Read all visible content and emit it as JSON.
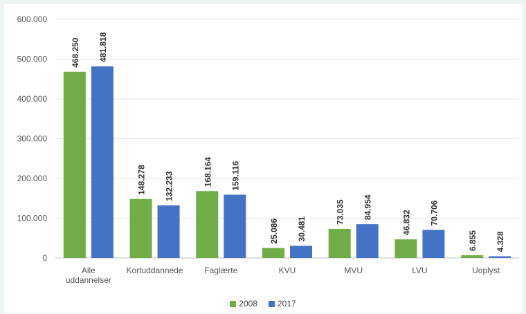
{
  "chart_data": {
    "type": "bar",
    "categories": [
      "Alle uddannelser",
      "Kortuddannede",
      "Faglærte",
      "KVU",
      "MVU",
      "LVU",
      "Uoplyst"
    ],
    "category_lines": [
      [
        "Alle",
        "uddannelser"
      ],
      [
        "Kortuddannede"
      ],
      [
        "Faglærte"
      ],
      [
        "KVU"
      ],
      [
        "MVU"
      ],
      [
        "LVU"
      ],
      [
        "Uoplyst"
      ]
    ],
    "series": [
      {
        "name": "2008",
        "color": "#70ad47",
        "values": [
          468250,
          148278,
          168164,
          25086,
          73035,
          46832,
          6855
        ],
        "labels": [
          "468.250",
          "148.278",
          "168.164",
          "25.086",
          "73.035",
          "46.832",
          "6.855"
        ]
      },
      {
        "name": "2017",
        "color": "#4472c4",
        "values": [
          481818,
          132233,
          159116,
          30481,
          84954,
          70706,
          4328
        ],
        "labels": [
          "481.818",
          "132.233",
          "159.116",
          "30.481",
          "84.954",
          "70.706",
          "4.328"
        ]
      }
    ],
    "yticks": [
      0,
      100000,
      200000,
      300000,
      400000,
      500000,
      600000
    ],
    "ytick_labels": [
      "0",
      "100.000",
      "200.000",
      "300.000",
      "400.000",
      "500.000",
      "600.000"
    ],
    "ylim": [
      0,
      600000
    ],
    "grid": true,
    "legend_position": "bottom"
  }
}
